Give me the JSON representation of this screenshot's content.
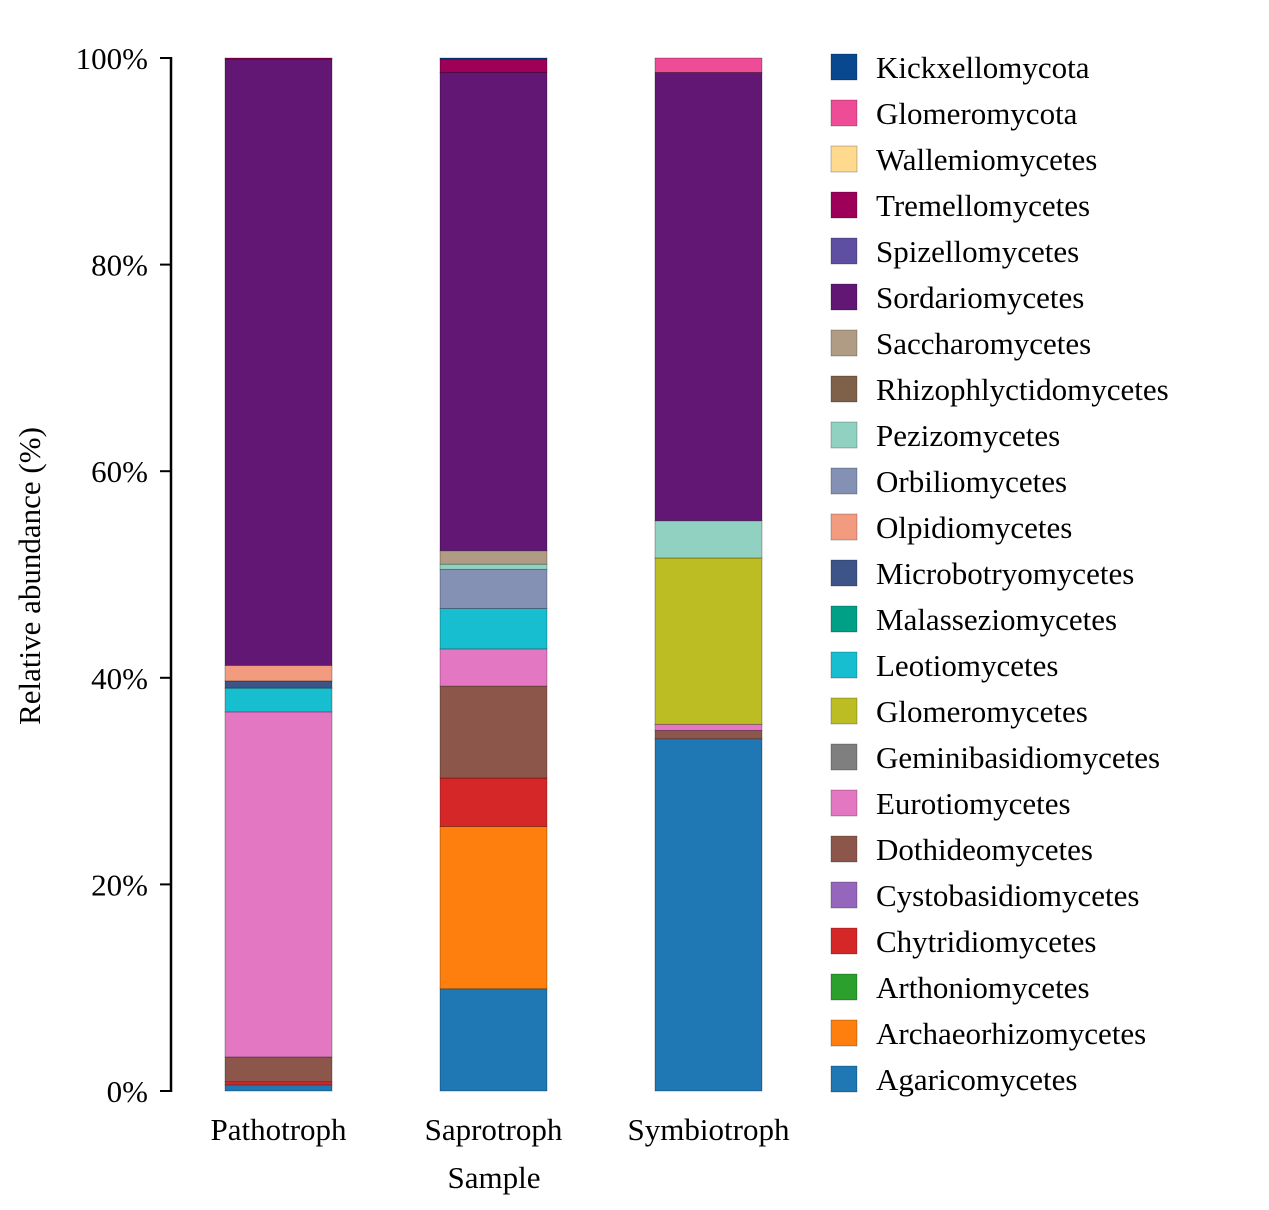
{
  "chart_data": {
    "type": "bar",
    "stacked": true,
    "xlabel": "Sample",
    "ylabel": "Relative abundance (%)",
    "ylim": [
      0,
      100
    ],
    "yticks": [
      "0%",
      "20%",
      "40%",
      "60%",
      "80%",
      "100%"
    ],
    "categories": [
      "Pathotroph",
      "Saprotroph",
      "Symbiotroph"
    ],
    "legend_position": "right",
    "grid": false,
    "series": [
      {
        "name": "Agaricomycetes",
        "color": "#1f77b4",
        "values": [
          0.6,
          9.9,
          34.1
        ]
      },
      {
        "name": "Archaeorhizomycetes",
        "color": "#ff7f0e",
        "values": [
          0,
          15.7,
          0
        ]
      },
      {
        "name": "Arthoniomycetes",
        "color": "#2ca02c",
        "values": [
          0,
          0,
          0
        ]
      },
      {
        "name": "Chytridiomycetes",
        "color": "#d62728",
        "values": [
          0.3,
          4.7,
          0
        ]
      },
      {
        "name": "Cystobasidiomycetes",
        "color": "#9467bd",
        "values": [
          0,
          0,
          0
        ]
      },
      {
        "name": "Dothideomycetes",
        "color": "#8c564b",
        "values": [
          2.4,
          8.9,
          0.8
        ]
      },
      {
        "name": "Eurotiomycetes",
        "color": "#e377c2",
        "values": [
          33.4,
          3.6,
          0.6
        ]
      },
      {
        "name": "Geminibasidiomycetes",
        "color": "#7f7f7f",
        "values": [
          0,
          0,
          0
        ]
      },
      {
        "name": "Glomeromycetes",
        "color": "#bcbd22",
        "values": [
          0,
          0,
          16.1
        ]
      },
      {
        "name": "Leotiomycetes",
        "color": "#17becf",
        "values": [
          2.3,
          3.9,
          0
        ]
      },
      {
        "name": "Malasseziomycetes",
        "color": "#00a087",
        "values": [
          0,
          0,
          0
        ]
      },
      {
        "name": "Microbotryomycetes",
        "color": "#3c5488",
        "values": [
          0.7,
          0,
          0
        ]
      },
      {
        "name": "Olpidiomycetes",
        "color": "#f39b7f",
        "values": [
          1.5,
          0,
          0
        ]
      },
      {
        "name": "Orbiliomycetes",
        "color": "#8491b4",
        "values": [
          0,
          3.8,
          0
        ]
      },
      {
        "name": "Pezizomycetes",
        "color": "#91d1c2",
        "values": [
          0,
          0.5,
          3.6
        ]
      },
      {
        "name": "Rhizophlyctidomycetes",
        "color": "#7e6148",
        "values": [
          0,
          0,
          0
        ]
      },
      {
        "name": "Saccharomycetes",
        "color": "#b09c85",
        "values": [
          0,
          1.3,
          0
        ]
      },
      {
        "name": "Sordariomycetes",
        "color": "#611773",
        "values": [
          58.7,
          46.3,
          43.4
        ]
      },
      {
        "name": "Spizellomycetes",
        "color": "#5e4fa2",
        "values": [
          0,
          0,
          0
        ]
      },
      {
        "name": "Tremellomycetes",
        "color": "#9e0059",
        "values": [
          0.1,
          1.3,
          0
        ]
      },
      {
        "name": "Wallemiomycetes",
        "color": "#fed98e",
        "values": [
          0,
          0,
          0
        ]
      },
      {
        "name": "Glomeromycota",
        "color": "#ee4c97",
        "values": [
          0,
          0,
          1.4
        ]
      },
      {
        "name": "Kickxellomycota",
        "color": "#08488e",
        "values": [
          0,
          0.1,
          0
        ]
      }
    ]
  }
}
